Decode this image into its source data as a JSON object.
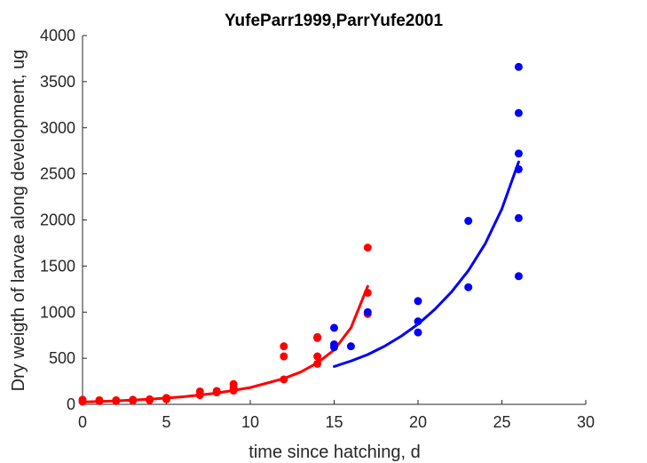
{
  "chart_data": {
    "type": "scatter",
    "title": "YufeParr1999,ParrYufe2001",
    "xlabel": "time since hatching, d",
    "ylabel": "Dry weigth of larvae along development, ug",
    "xlim": [
      0,
      30
    ],
    "ylim": [
      0,
      4000
    ],
    "xticks": [
      0,
      5,
      10,
      15,
      20,
      25,
      30
    ],
    "yticks": [
      0,
      500,
      1000,
      1500,
      2000,
      2500,
      3000,
      3500,
      4000
    ],
    "grid": false,
    "series": [
      {
        "color": "#ff0000",
        "points": [
          [
            0,
            30
          ],
          [
            0,
            50
          ],
          [
            1,
            35
          ],
          [
            1,
            45
          ],
          [
            2,
            35
          ],
          [
            2,
            45
          ],
          [
            3,
            40
          ],
          [
            3,
            50
          ],
          [
            4,
            45
          ],
          [
            4,
            55
          ],
          [
            5,
            55
          ],
          [
            5,
            70
          ],
          [
            7,
            100
          ],
          [
            7,
            140
          ],
          [
            8,
            130
          ],
          [
            8,
            145
          ],
          [
            9,
            150
          ],
          [
            9,
            180
          ],
          [
            9,
            220
          ],
          [
            12,
            270
          ],
          [
            12,
            520
          ],
          [
            12,
            630
          ],
          [
            14,
            440
          ],
          [
            14,
            520
          ],
          [
            14,
            720
          ],
          [
            14,
            730
          ],
          [
            17,
            980
          ],
          [
            17,
            1210
          ],
          [
            17,
            1700
          ]
        ],
        "fit": [
          [
            0,
            25
          ],
          [
            2,
            37
          ],
          [
            4,
            55
          ],
          [
            6,
            82
          ],
          [
            8,
            122
          ],
          [
            10,
            182
          ],
          [
            12,
            280
          ],
          [
            13,
            350
          ],
          [
            14,
            450
          ],
          [
            15,
            590
          ],
          [
            16,
            830
          ],
          [
            17,
            1280
          ]
        ]
      },
      {
        "color": "#0000ff",
        "points": [
          [
            15,
            620
          ],
          [
            15,
            650
          ],
          [
            15,
            830
          ],
          [
            16,
            630
          ],
          [
            17,
            1000
          ],
          [
            20,
            780
          ],
          [
            20,
            900
          ],
          [
            20,
            1120
          ],
          [
            23,
            1270
          ],
          [
            23,
            1990
          ],
          [
            26,
            1390
          ],
          [
            26,
            2020
          ],
          [
            26,
            2550
          ],
          [
            26,
            2720
          ],
          [
            26,
            3160
          ],
          [
            26,
            3660
          ]
        ],
        "fit": [
          [
            15,
            410
          ],
          [
            16,
            470
          ],
          [
            17,
            540
          ],
          [
            18,
            630
          ],
          [
            19,
            740
          ],
          [
            20,
            870
          ],
          [
            21,
            1030
          ],
          [
            22,
            1220
          ],
          [
            23,
            1450
          ],
          [
            24,
            1740
          ],
          [
            25,
            2120
          ],
          [
            26,
            2630
          ]
        ]
      }
    ]
  }
}
